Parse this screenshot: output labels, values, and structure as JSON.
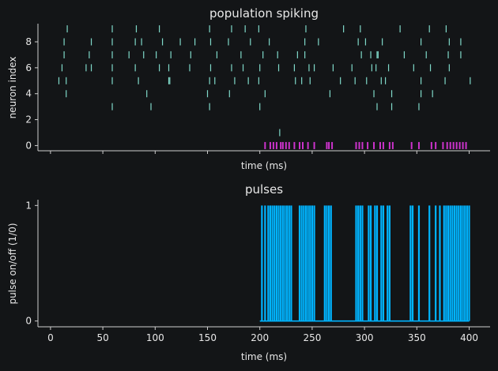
{
  "colors": {
    "background": "#131517",
    "axis": "#cfcfcf",
    "text": "#e8e8e8",
    "raster": "#7fd9c9",
    "pulse_raster": "#cc33cc",
    "pulse_line": "#00b4ff"
  },
  "chart_data": [
    {
      "type": "scatter",
      "title": "population spiking",
      "xlabel": "time (ms)",
      "ylabel": "neuron index",
      "xlim": [
        -12,
        420
      ],
      "ylim": [
        -0.4,
        9.4
      ],
      "yticks": [
        0,
        2,
        4,
        6,
        8
      ],
      "xticks": [
        0,
        50,
        100,
        150,
        200,
        250,
        300,
        350,
        400
      ],
      "xticklabels_visible": false,
      "marker": "vertical-tick",
      "series": [
        {
          "neuron": 9,
          "times": [
            16,
            59,
            82,
            104,
            152,
            173,
            186,
            199,
            244,
            280,
            296,
            334,
            362,
            378
          ]
        },
        {
          "neuron": 8,
          "times": [
            13,
            39,
            59,
            81,
            87,
            107,
            124,
            138,
            153,
            170,
            191,
            209,
            243,
            256,
            294,
            301,
            317,
            354,
            381,
            392
          ]
        },
        {
          "neuron": 7,
          "times": [
            13,
            37,
            59,
            75,
            89,
            101,
            115,
            134,
            159,
            182,
            203,
            217,
            236,
            243,
            297,
            306,
            312,
            313,
            338,
            359,
            380,
            392
          ]
        },
        {
          "neuron": 6,
          "times": [
            11,
            34,
            39,
            59,
            81,
            104,
            113,
            133,
            153,
            173,
            184,
            200,
            218,
            233,
            247,
            252,
            270,
            288,
            307,
            311,
            323,
            347,
            363,
            381
          ]
        },
        {
          "neuron": 5,
          "times": [
            8,
            15,
            59,
            84,
            113,
            114,
            152,
            157,
            176,
            189,
            199,
            234,
            240,
            248,
            277,
            291,
            302,
            316,
            320,
            354,
            377,
            401
          ]
        },
        {
          "neuron": 4,
          "times": [
            15,
            92,
            150,
            171,
            205,
            267,
            309,
            326,
            354,
            365
          ]
        },
        {
          "neuron": 3,
          "times": [
            59,
            96,
            152,
            200,
            312,
            326,
            352
          ]
        },
        {
          "neuron": 1,
          "times": [
            219
          ]
        }
      ],
      "pulse_row": {
        "neuron": 0,
        "times": [
          205,
          210,
          213,
          216,
          220,
          222,
          225,
          228,
          233,
          238,
          241,
          246,
          252,
          264,
          266,
          269,
          292,
          295,
          298,
          303,
          309,
          315,
          318,
          324,
          327,
          345,
          352,
          364,
          368,
          375,
          379,
          382,
          385,
          388,
          391,
          394,
          397
        ]
      }
    },
    {
      "type": "line",
      "title": "pulses",
      "xlabel": "time (ms)",
      "ylabel": "pulse on/off (1/0)",
      "xlim": [
        -12,
        420
      ],
      "ylim": [
        -0.05,
        1.05
      ],
      "yticks": [
        0,
        1
      ],
      "xticks": [
        0,
        50,
        100,
        150,
        200,
        250,
        300,
        350,
        400
      ],
      "baseline": {
        "x_start": 200,
        "x_end": 400,
        "value": 0
      },
      "pulse_times": [
        202,
        205,
        208,
        210,
        212,
        214,
        216,
        218,
        220,
        222,
        224,
        226,
        228,
        230,
        238,
        240,
        242,
        244,
        246,
        248,
        250,
        252,
        262,
        264,
        266,
        268,
        292,
        294,
        296,
        298,
        304,
        306,
        310,
        312,
        316,
        318,
        322,
        324,
        344,
        346,
        352,
        362,
        368,
        372,
        376,
        378,
        380,
        382,
        384,
        386,
        388,
        390,
        392,
        394,
        396,
        398,
        400
      ]
    }
  ]
}
